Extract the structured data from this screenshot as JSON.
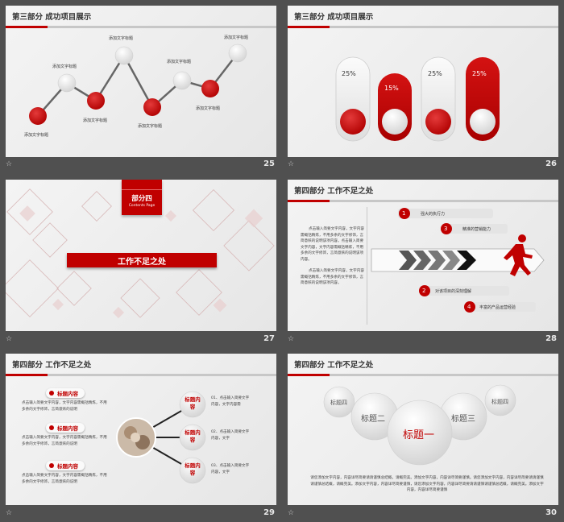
{
  "s25": {
    "title": "第三部分   成功项目展示",
    "num": "25",
    "labels": [
      "添加文字标题",
      "添加文字标题",
      "添加文字标题",
      "添加文字标题",
      "添加文字标题",
      "添加文字标题",
      "添加文字标题",
      "添加文字标题"
    ]
  },
  "s26": {
    "title": "第三部分   成功项目展示",
    "num": "26",
    "pct": [
      "25%",
      "15%",
      "25%",
      "25%"
    ]
  },
  "s27": {
    "part": "部分四",
    "contents": "Contents  Page",
    "banner": "工作不足之处",
    "num": "27"
  },
  "s28": {
    "title": "第四部分   工作不足之处",
    "num": "28",
    "p1": "点击输入简要文字内容，文字内容需概括精炼，不用多余的文字修饰，言简意赅的说明该项内容。点击输入简要文字内容，文字内容需概括精炼，不用多余的文字修饰，言简意赅的说明该项内容。",
    "p2": "点击输入简要文字内容，文字内容需概括精炼，不用多余的文字修饰，言简意赅的说明该项内容。",
    "steps": [
      {
        "n": "1",
        "t": "强大的执行力"
      },
      {
        "n": "3",
        "t": "精准的营销能力"
      },
      {
        "n": "2",
        "t": "对该项目的深刻理解"
      },
      {
        "n": "4",
        "t": "丰富的产品运营经验"
      }
    ]
  },
  "s29": {
    "title": "第四部分   工作不足之处",
    "num": "29",
    "pills": [
      "标题内容",
      "标题内容",
      "标题内容"
    ],
    "ptext": "点击输入简要文字内容，文字内容需概括精炼，不用多余的文字修饰，言简意赅的说明",
    "bubble": "标题内容",
    "items": [
      "01、点击输入简要文字内容，文字内容需",
      "02、点击输入简要文字内容，文字",
      "03、点击输入简要文字内容，文字"
    ]
  },
  "s30": {
    "title": "第四部分   工作不足之处",
    "num": "30",
    "circles": [
      "标题四",
      "标题二",
      "标题一",
      "标题三",
      "标题四"
    ],
    "para": "请您添加文字内容，内容详尽简要请请谨慎总结概，请概完美。添加文字内容，内容详尽简要谨慎。请您添加文字内容，内容详尽简要请请谨慎请谨慎总结概，请概完美。添加文字内容，内容详尽简要谨慎，请您添加文字内容，内容详尽简要请请谨慎请谨慎总结概，请概完美。添加文字内容，内容详尽简要谨慎"
  },
  "colors": {
    "accent": "#c00000",
    "bg": "#505050",
    "slide": "#eeeeee"
  }
}
